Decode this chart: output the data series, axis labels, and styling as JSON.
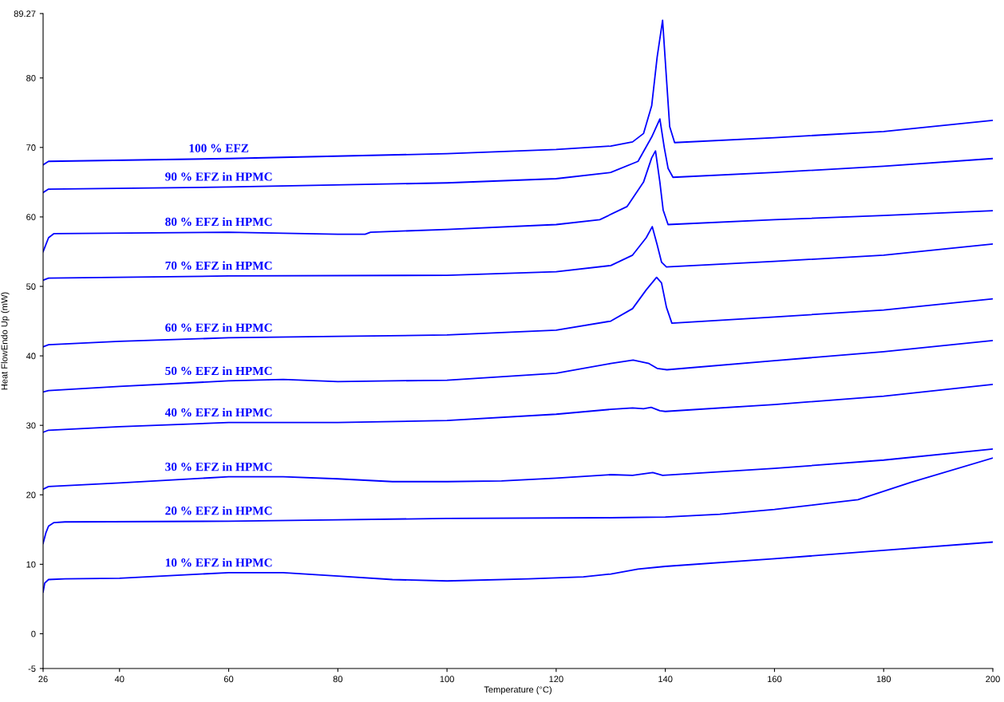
{
  "chart_data": {
    "type": "line",
    "xlabel": "Temperature (°C)",
    "ylabel": "Heat FlowEndo Up (mW)",
    "xlim": [
      26,
      200
    ],
    "xticks": [
      26,
      40,
      60,
      80,
      100,
      120,
      140,
      160,
      180,
      200
    ],
    "ylim": [
      -5,
      89.27
    ],
    "yticks": [
      -5,
      0,
      10,
      20,
      30,
      40,
      50,
      60,
      70,
      80,
      89.27
    ],
    "grid": false,
    "legend": false,
    "marker": "none",
    "line_style": "solid",
    "series": [
      {
        "name": "100 % EFZ",
        "color": "#0000ff",
        "x": [
          26,
          27,
          60,
          100,
          120,
          130,
          134,
          136,
          137.5,
          138.5,
          139.5,
          140.2,
          140.8,
          141.7,
          160,
          180,
          200
        ],
        "values": [
          67.5,
          68.0,
          68.4,
          69.1,
          69.7,
          70.2,
          70.8,
          72,
          76,
          83,
          88.3,
          80,
          73,
          70.7,
          71.4,
          72.3,
          73.9
        ]
      },
      {
        "name": "90 % EFZ in HPMC",
        "color": "#0000ff",
        "x": [
          26,
          27,
          60,
          100,
          120,
          130,
          135,
          137.5,
          139.0,
          139.8,
          140.5,
          141.4,
          160,
          180,
          200
        ],
        "values": [
          63.5,
          64.0,
          64.3,
          64.9,
          65.5,
          66.4,
          68,
          71.5,
          74.1,
          70,
          67,
          65.7,
          66.4,
          67.3,
          68.4
        ]
      },
      {
        "name": "80 % EFZ in HPMC",
        "color": "#0000ff",
        "x": [
          26,
          27,
          28,
          60,
          80,
          85,
          86,
          100,
          120,
          128,
          133,
          136,
          137.5,
          138.2,
          139,
          139.6,
          140.5,
          160,
          180,
          200
        ],
        "values": [
          55,
          57.0,
          57.6,
          57.8,
          57.5,
          57.5,
          57.8,
          58.2,
          58.9,
          59.6,
          61.5,
          65,
          68.5,
          69.5,
          65,
          61,
          58.9,
          59.6,
          60.2,
          60.9
        ]
      },
      {
        "name": "70 % EFZ in HPMC",
        "color": "#0000ff",
        "x": [
          26,
          27,
          60,
          100,
          120,
          130,
          134,
          136.5,
          137.6,
          138.5,
          139.3,
          140.2,
          160,
          180,
          200
        ],
        "values": [
          50.9,
          51.2,
          51.5,
          51.6,
          52.1,
          53.0,
          54.5,
          57,
          58.6,
          56,
          53.5,
          52.8,
          53.6,
          54.5,
          56.1
        ]
      },
      {
        "name": "60 % EFZ in HPMC",
        "color": "#0000ff",
        "x": [
          26,
          27,
          40,
          60,
          80,
          100,
          120,
          130,
          134,
          136.5,
          138.4,
          139.3,
          140.2,
          141.2,
          160,
          180,
          200
        ],
        "values": [
          41.3,
          41.6,
          42.1,
          42.6,
          42.8,
          43.0,
          43.7,
          45.0,
          46.8,
          49.5,
          51.3,
          50.5,
          47,
          44.7,
          45.6,
          46.6,
          48.2
        ]
      },
      {
        "name": "50 % EFZ in HPMC",
        "color": "#0000ff",
        "x": [
          26,
          27,
          40,
          60,
          70,
          80,
          100,
          120,
          130,
          134.1,
          137,
          138.5,
          140.3,
          160,
          180,
          200
        ],
        "values": [
          34.8,
          35.0,
          35.6,
          36.4,
          36.6,
          36.3,
          36.5,
          37.5,
          38.9,
          39.4,
          38.9,
          38.2,
          38.0,
          39.3,
          40.6,
          42.2
        ]
      },
      {
        "name": "40 % EFZ in HPMC",
        "color": "#0000ff",
        "x": [
          26,
          27,
          40,
          60,
          80,
          100,
          120,
          130,
          134,
          136,
          137.4,
          139,
          140,
          160,
          180,
          200
        ],
        "values": [
          29.0,
          29.3,
          29.8,
          30.4,
          30.4,
          30.7,
          31.6,
          32.3,
          32.5,
          32.4,
          32.6,
          32.1,
          32.0,
          33.0,
          34.2,
          35.9
        ]
      },
      {
        "name": "30 % EFZ in HPMC",
        "color": "#0000ff",
        "x": [
          26,
          27,
          40,
          60,
          70,
          80,
          90,
          100,
          110,
          120,
          130,
          134,
          137.7,
          139.5,
          160,
          180,
          200
        ],
        "values": [
          20.8,
          21.2,
          21.7,
          22.6,
          22.6,
          22.3,
          21.9,
          21.9,
          22.0,
          22.4,
          22.9,
          22.8,
          23.2,
          22.8,
          23.8,
          25.0,
          26.6
        ]
      },
      {
        "name": "20 % EFZ in HPMC",
        "color": "#0000ff",
        "x": [
          26,
          26.5,
          27,
          28,
          30,
          60,
          80,
          100,
          130,
          140,
          150,
          160,
          170,
          175.3,
          185,
          200
        ],
        "values": [
          13.0,
          14.5,
          15.5,
          16.0,
          16.1,
          16.2,
          16.4,
          16.6,
          16.7,
          16.8,
          17.2,
          17.9,
          18.8,
          19.3,
          21.8,
          25.3
        ]
      },
      {
        "name": "10 % EFZ in HPMC",
        "color": "#0000ff",
        "x": [
          26,
          26.3,
          27,
          30,
          40,
          60,
          70,
          80,
          90,
          100,
          115,
          125,
          130,
          135,
          140,
          160,
          180,
          200
        ],
        "values": [
          6.0,
          7.3,
          7.8,
          7.9,
          8.0,
          8.8,
          8.8,
          8.3,
          7.8,
          7.6,
          7.9,
          8.2,
          8.6,
          9.3,
          9.7,
          10.8,
          12.0,
          13.2
        ]
      }
    ]
  }
}
